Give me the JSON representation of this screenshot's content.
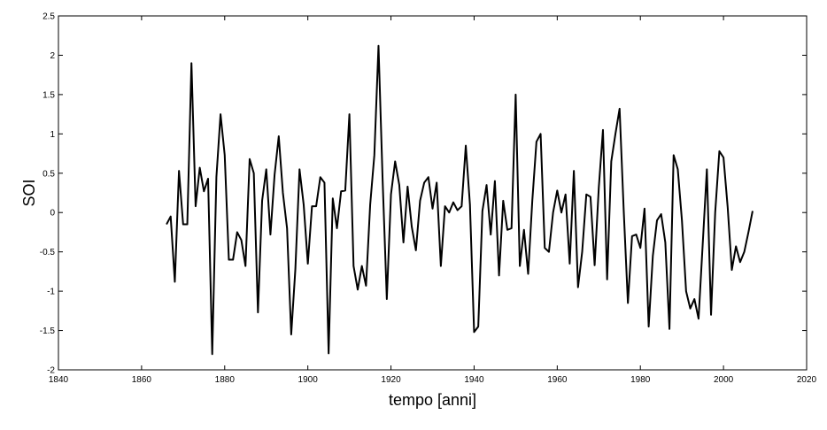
{
  "chart_data": {
    "type": "line",
    "title": "",
    "xlabel": "tempo [anni]",
    "ylabel": "SOI",
    "xlim": [
      1840,
      2020
    ],
    "ylim": [
      -2,
      2.5
    ],
    "xticks": [
      1840,
      1860,
      1880,
      1900,
      1920,
      1940,
      1960,
      1980,
      2000,
      2020
    ],
    "yticks": [
      -2,
      -1.5,
      -1,
      -0.5,
      0,
      0.5,
      1,
      1.5,
      2,
      2.5
    ],
    "x_tick_labels": [
      "1840",
      "1860",
      "1880",
      "1900",
      "1920",
      "1940",
      "1960",
      "1980",
      "2000",
      "2020"
    ],
    "y_tick_labels": [
      "-2",
      "-1.5",
      "-1",
      "-0.5",
      "0",
      "0.5",
      "1",
      "1.5",
      "2",
      "2.5"
    ],
    "grid": false,
    "line_color": "#000000",
    "series": [
      {
        "x": [
          1866,
          1867,
          1868,
          1869,
          1870,
          1871,
          1872,
          1873,
          1874,
          1875,
          1876,
          1877,
          1878,
          1879,
          1880,
          1881,
          1882,
          1883,
          1884,
          1885,
          1886,
          1887,
          1888,
          1889,
          1890,
          1891,
          1892,
          1893,
          1894,
          1895,
          1896,
          1897,
          1898,
          1899,
          1900,
          1901,
          1902,
          1903,
          1904,
          1905,
          1906,
          1907,
          1908,
          1909,
          1910,
          1911,
          1912,
          1913,
          1914,
          1915,
          1916,
          1917,
          1918,
          1919,
          1920,
          1921,
          1922,
          1923,
          1924,
          1925,
          1926,
          1927,
          1928,
          1929,
          1930,
          1931,
          1932,
          1933,
          1934,
          1935,
          1936,
          1937,
          1938,
          1939,
          1940,
          1941,
          1942,
          1943,
          1944,
          1945,
          1946,
          1947,
          1948,
          1949,
          1950,
          1951,
          1952,
          1953,
          1954,
          1955,
          1956,
          1957,
          1958,
          1959,
          1960,
          1961,
          1962,
          1963,
          1964,
          1965,
          1966,
          1967,
          1968,
          1969,
          1970,
          1971,
          1972,
          1973,
          1974,
          1975,
          1976,
          1977,
          1978,
          1979,
          1980,
          1981,
          1982,
          1983,
          1984,
          1985,
          1986,
          1987,
          1988,
          1989,
          1990,
          1991,
          1992,
          1993,
          1994,
          1995,
          1996,
          1997,
          1998,
          1999,
          2000,
          2001,
          2002,
          2003,
          2004,
          2005,
          2006,
          2007
        ],
        "y": [
          -0.15,
          -0.05,
          -0.88,
          0.53,
          -0.15,
          -0.15,
          1.9,
          0.08,
          0.57,
          0.27,
          0.43,
          -1.8,
          0.45,
          1.25,
          0.73,
          -0.6,
          -0.6,
          -0.25,
          -0.35,
          -0.68,
          0.68,
          0.5,
          -1.27,
          0.15,
          0.55,
          -0.28,
          0.48,
          0.97,
          0.25,
          -0.2,
          -1.55,
          -0.72,
          0.55,
          0.1,
          -0.65,
          0.08,
          0.08,
          0.45,
          0.38,
          -1.79,
          0.18,
          -0.2,
          0.27,
          0.28,
          1.25,
          -0.68,
          -0.98,
          -0.68,
          -0.93,
          0.1,
          0.73,
          2.12,
          0.4,
          -1.1,
          0.23,
          0.65,
          0.35,
          -0.38,
          0.33,
          -0.18,
          -0.48,
          0.15,
          0.38,
          0.45,
          0.05,
          0.38,
          -0.68,
          0.08,
          0,
          0.13,
          0.03,
          0.08,
          0.85,
          0.1,
          -1.52,
          -1.45,
          0.02,
          0.35,
          -0.28,
          0.4,
          -0.8,
          0.15,
          -0.22,
          -0.2,
          1.5,
          -0.68,
          -0.22,
          -0.78,
          0.15,
          0.9,
          1,
          -0.45,
          -0.5,
          0,
          0.28,
          0,
          0.23,
          -0.65,
          0.53,
          -0.95,
          -0.5,
          0.23,
          0.2,
          -0.67,
          0.32,
          1.05,
          -0.85,
          0.65,
          1,
          1.32,
          0.02,
          -1.15,
          -0.3,
          -0.28,
          -0.45,
          0.05,
          -1.45,
          -0.55,
          -0.1,
          -0.02,
          -0.38,
          -1.48,
          0.73,
          0.55,
          -0.1,
          -1,
          -1.22,
          -1.1,
          -1.35,
          -0.4,
          0.55,
          -1.3,
          0,
          0.78,
          0.7,
          0.07,
          -0.73,
          -0.43,
          -0.63,
          -0.5,
          -0.25,
          0.02
        ]
      }
    ]
  }
}
